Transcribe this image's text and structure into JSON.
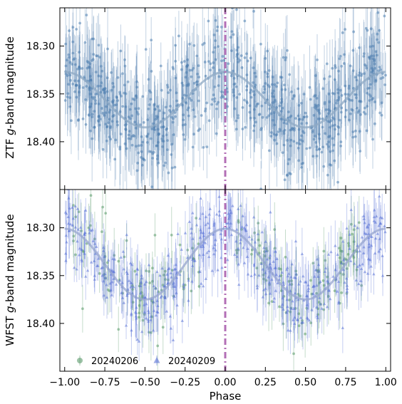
{
  "figure": {
    "xlabel": "Phase"
  },
  "chart_data": [
    {
      "type": "scatter",
      "panel": "top",
      "ylabel_prefix": "ZTF ",
      "ylabel_italic": "g",
      "ylabel_suffix": "-band magnitude",
      "xlim": [
        -1.03,
        1.03
      ],
      "ylim": [
        18.45,
        18.26
      ],
      "inverted_y": true,
      "x_ticks": [
        -1.0,
        -0.75,
        -0.5,
        -0.25,
        0.0,
        0.25,
        0.5,
        0.75,
        1.0
      ],
      "x_tick_labels": [
        "−1.00",
        "−0.75",
        "−0.50",
        "−0.25",
        "0.00",
        "0.25",
        "0.50",
        "0.75",
        "1.00"
      ],
      "show_x_tick_labels": false,
      "y_ticks": [
        18.3,
        18.35,
        18.4
      ],
      "y_tick_labels": [
        "18.30",
        "18.35",
        "18.40"
      ],
      "phase_marker_x": 0.0,
      "grid": false,
      "model_curve": {
        "description_values": "sinusoid, amplitude 0.029 mag, mean 18.356, minima of brightness at phase ±0.5",
        "mean": 18.356,
        "amplitude": 0.029,
        "color": "#8fa9c4"
      },
      "series": [
        {
          "marker": "circle",
          "color": "#4f7fb0",
          "n_points": 900,
          "scatter_sd": 0.028,
          "errorbar_half_range": [
            0.02,
            0.045
          ]
        }
      ]
    },
    {
      "type": "scatter",
      "panel": "bottom",
      "ylabel_prefix": "WFST ",
      "ylabel_italic": "g",
      "ylabel_suffix": "-band magnitude",
      "xlim": [
        -1.03,
        1.03
      ],
      "ylim": [
        18.45,
        18.26
      ],
      "inverted_y": true,
      "x_ticks": [
        -1.0,
        -0.75,
        -0.5,
        -0.25,
        0.0,
        0.25,
        0.5,
        0.75,
        1.0
      ],
      "x_tick_labels": [
        "−1.00",
        "−0.75",
        "−0.50",
        "−0.25",
        "0.00",
        "0.25",
        "0.50",
        "0.75",
        "1.00"
      ],
      "show_x_tick_labels": true,
      "y_ticks": [
        18.3,
        18.35,
        18.4
      ],
      "y_tick_labels": [
        "18.30",
        "18.35",
        "18.40"
      ],
      "phase_marker_x": 0.0,
      "grid": false,
      "legend_position": "lower-left",
      "model_curve": {
        "mean": 18.338,
        "amplitude": 0.037,
        "color": "#97a5cf"
      },
      "series": [
        {
          "name": "20240206",
          "marker": "circle",
          "color": "#5a9a6a",
          "n_points": 200,
          "phase_ranges": [
            [
              -0.95,
              -0.15
            ],
            [
              0.05,
              0.85
            ]
          ],
          "scatter_sd": 0.022,
          "errorbar_half_range": [
            0.015,
            0.03
          ]
        },
        {
          "name": "20240209",
          "marker": "triangle",
          "color": "#5a73d6",
          "n_points": 520,
          "phase_ranges": [
            [
              -1.0,
              1.0
            ]
          ],
          "scatter_sd": 0.022,
          "errorbar_half_range": [
            0.012,
            0.03
          ]
        }
      ]
    }
  ],
  "colors": {
    "phase_marker": "#b36fb6",
    "axes": "#000000"
  }
}
